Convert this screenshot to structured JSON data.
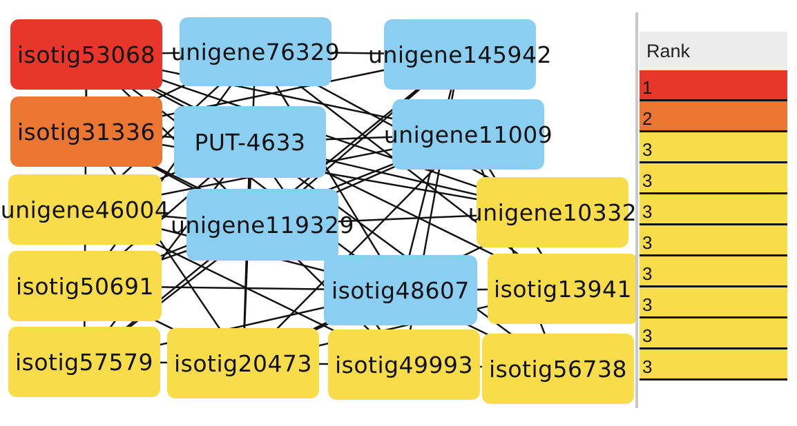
{
  "colors": {
    "rank1": "#E8372A",
    "rank2": "#EA7632",
    "rank3": "#F8DC4A",
    "query": "#8ACFF2",
    "edge": "#111111"
  },
  "network": {
    "nodes": [
      {
        "id": "isotig53068",
        "label": "isotig53068",
        "role": "rank1"
      },
      {
        "id": "unigene76329",
        "label": "unigene76329",
        "role": "query"
      },
      {
        "id": "unigene145942",
        "label": "unigene145942",
        "role": "query"
      },
      {
        "id": "isotig31336",
        "label": "isotig31336",
        "role": "rank2"
      },
      {
        "id": "PUT-4633",
        "label": "PUT-4633",
        "role": "query"
      },
      {
        "id": "unigene11009",
        "label": "unigene11009",
        "role": "query"
      },
      {
        "id": "unigene46004",
        "label": "unigene46004",
        "role": "rank3"
      },
      {
        "id": "unigene119329",
        "label": "unigene119329",
        "role": "query"
      },
      {
        "id": "unigene10332",
        "label": "unigene10332",
        "role": "rank3"
      },
      {
        "id": "isotig50691",
        "label": "isotig50691",
        "role": "rank3"
      },
      {
        "id": "isotig48607",
        "label": "isotig48607",
        "role": "query"
      },
      {
        "id": "isotig13941",
        "label": "isotig13941",
        "role": "rank3"
      },
      {
        "id": "isotig57579",
        "label": "isotig57579",
        "role": "rank3"
      },
      {
        "id": "isotig20473",
        "label": "isotig20473",
        "role": "rank3"
      },
      {
        "id": "isotig49993",
        "label": "isotig49993",
        "role": "rank3"
      },
      {
        "id": "isotig56738",
        "label": "isotig56738",
        "role": "rank3"
      }
    ],
    "edges": [
      [
        "isotig53068",
        "unigene76329"
      ],
      [
        "unigene76329",
        "unigene145942"
      ],
      [
        "isotig53068",
        "isotig31336"
      ],
      [
        "isotig31336",
        "PUT-4633"
      ],
      [
        "PUT-4633",
        "unigene11009"
      ],
      [
        "unigene46004",
        "unigene119329"
      ],
      [
        "unigene119329",
        "unigene10332"
      ],
      [
        "isotig50691",
        "isotig48607"
      ],
      [
        "isotig48607",
        "isotig13941"
      ],
      [
        "isotig57579",
        "isotig20473"
      ],
      [
        "isotig20473",
        "isotig49993"
      ],
      [
        "isotig49993",
        "isotig56738"
      ],
      [
        "isotig53068",
        "PUT-4633"
      ],
      [
        "isotig53068",
        "unigene11009"
      ],
      [
        "isotig53068",
        "unigene119329"
      ],
      [
        "isotig53068",
        "isotig48607"
      ],
      [
        "isotig53068",
        "unigene10332"
      ],
      [
        "isotig53068",
        "isotig13941"
      ],
      [
        "isotig31336",
        "unigene76329"
      ],
      [
        "isotig31336",
        "unigene145942"
      ],
      [
        "isotig31336",
        "unigene119329"
      ],
      [
        "isotig31336",
        "isotig48607"
      ],
      [
        "isotig31336",
        "isotig20473"
      ],
      [
        "isotig31336",
        "unigene10332"
      ],
      [
        "unigene46004",
        "unigene76329"
      ],
      [
        "unigene46004",
        "PUT-4633"
      ],
      [
        "unigene46004",
        "unigene11009"
      ],
      [
        "unigene46004",
        "isotig48607"
      ],
      [
        "unigene46004",
        "isotig49993"
      ],
      [
        "isotig50691",
        "unigene76329"
      ],
      [
        "isotig50691",
        "PUT-4633"
      ],
      [
        "isotig50691",
        "unigene119329"
      ],
      [
        "isotig50691",
        "unigene11009"
      ],
      [
        "isotig50691",
        "isotig20473"
      ],
      [
        "isotig57579",
        "PUT-4633"
      ],
      [
        "isotig57579",
        "unigene119329"
      ],
      [
        "isotig57579",
        "isotig48607"
      ],
      [
        "isotig57579",
        "unigene145942"
      ],
      [
        "isotig20473",
        "unigene76329"
      ],
      [
        "isotig20473",
        "PUT-4633"
      ],
      [
        "isotig20473",
        "unigene11009"
      ],
      [
        "isotig20473",
        "isotig48607"
      ],
      [
        "isotig49993",
        "unigene119329"
      ],
      [
        "isotig49993",
        "unigene145942"
      ],
      [
        "isotig49993",
        "PUT-4633"
      ],
      [
        "isotig56738",
        "unigene119329"
      ],
      [
        "isotig56738",
        "unigene11009"
      ],
      [
        "isotig56738",
        "PUT-4633"
      ],
      [
        "unigene10332",
        "PUT-4633"
      ],
      [
        "unigene10332",
        "unigene76329"
      ],
      [
        "unigene10332",
        "isotig20473"
      ],
      [
        "isotig13941",
        "unigene11009"
      ],
      [
        "isotig13941",
        "unigene76329"
      ],
      [
        "isotig13941",
        "isotig20473"
      ],
      [
        "unigene145942",
        "unigene119329"
      ],
      [
        "unigene145942",
        "isotig48607"
      ],
      [
        "unigene11009",
        "unigene119329"
      ],
      [
        "unigene76329",
        "isotig48607"
      ],
      [
        "isotig53068",
        "isotig57579"
      ]
    ]
  },
  "rank_panel": {
    "header": "Rank",
    "rows": [
      {
        "value": "1",
        "role": "rank1"
      },
      {
        "value": "2",
        "role": "rank2"
      },
      {
        "value": "3",
        "role": "rank3"
      },
      {
        "value": "3",
        "role": "rank3"
      },
      {
        "value": "3",
        "role": "rank3"
      },
      {
        "value": "3",
        "role": "rank3"
      },
      {
        "value": "3",
        "role": "rank3"
      },
      {
        "value": "3",
        "role": "rank3"
      },
      {
        "value": "3",
        "role": "rank3"
      },
      {
        "value": "3",
        "role": "rank3"
      }
    ]
  }
}
